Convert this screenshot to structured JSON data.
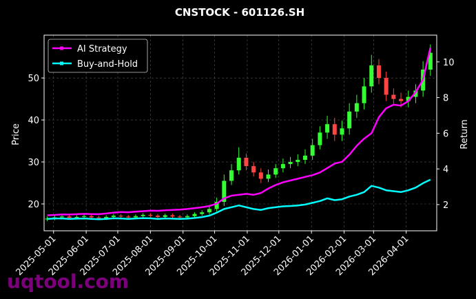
{
  "chart_data": {
    "type": "candlestick",
    "title": "CNSTOCK - 601126.SH",
    "ylabel": "Price",
    "y2label": "Return",
    "watermark": "uqtool.com",
    "x": [
      "2025-04-25",
      "2025-05-02",
      "2025-05-09",
      "2025-05-16",
      "2025-05-23",
      "2025-05-30",
      "2025-06-06",
      "2025-06-13",
      "2025-06-20",
      "2025-06-27",
      "2025-07-04",
      "2025-07-11",
      "2025-07-18",
      "2025-07-25",
      "2025-08-01",
      "2025-08-08",
      "2025-08-15",
      "2025-08-22",
      "2025-08-29",
      "2025-09-05",
      "2025-09-12",
      "2025-09-19",
      "2025-09-26",
      "2025-10-03",
      "2025-10-10",
      "2025-10-17",
      "2025-10-24",
      "2025-10-31",
      "2025-11-07",
      "2025-11-14",
      "2025-11-21",
      "2025-11-28",
      "2025-12-05",
      "2025-12-12",
      "2025-12-19",
      "2025-12-26",
      "2026-01-02",
      "2026-01-09",
      "2026-01-16",
      "2026-01-23",
      "2026-01-30",
      "2026-02-06",
      "2026-02-13",
      "2026-02-20",
      "2026-02-27",
      "2026-03-06",
      "2026-03-13",
      "2026-03-20",
      "2026-03-27",
      "2026-04-03",
      "2026-04-10",
      "2026-04-17",
      "2026-04-24"
    ],
    "open": [
      16.3,
      16.5,
      16.8,
      17.0,
      16.7,
      16.9,
      17.1,
      16.8,
      16.6,
      16.9,
      17.2,
      17.0,
      16.8,
      17.1,
      17.4,
      17.2,
      16.9,
      17.3,
      17.0,
      16.8,
      17.1,
      17.6,
      18.0,
      18.8,
      20.5,
      25.5,
      28.0,
      31.0,
      29.0,
      27.5,
      26.0,
      27.0,
      28.5,
      29.5,
      30.0,
      30.5,
      31.5,
      34.0,
      37.0,
      39.0,
      36.5,
      38.0,
      42.0,
      44.0,
      48.0,
      53.0,
      50.0,
      46.0,
      45.0,
      44.5,
      45.5,
      47.0,
      52.0
    ],
    "high": [
      17.0,
      17.3,
      17.5,
      17.4,
      17.3,
      17.5,
      17.5,
      17.2,
      17.3,
      17.6,
      17.6,
      17.4,
      17.5,
      17.8,
      17.8,
      17.6,
      17.7,
      17.7,
      17.4,
      17.5,
      18.0,
      18.5,
      19.4,
      21.5,
      27.0,
      29.5,
      33.5,
      32.0,
      30.0,
      28.5,
      28.2,
      29.5,
      30.8,
      31.2,
      31.8,
      33.0,
      35.5,
      38.5,
      41.0,
      40.5,
      39.8,
      44.0,
      46.0,
      50.0,
      55.5,
      54.5,
      51.5,
      47.5,
      46.5,
      47.0,
      48.5,
      54.0,
      58.0
    ],
    "low": [
      15.9,
      16.1,
      16.4,
      16.3,
      16.3,
      16.5,
      16.4,
      16.2,
      16.2,
      16.5,
      16.6,
      16.4,
      16.4,
      16.7,
      16.8,
      16.5,
      16.5,
      16.6,
      16.4,
      16.4,
      16.7,
      17.2,
      17.5,
      18.2,
      19.5,
      24.5,
      27.0,
      28.0,
      26.5,
      25.0,
      25.2,
      26.2,
      27.5,
      28.5,
      29.0,
      29.5,
      30.5,
      33.0,
      35.5,
      35.0,
      35.0,
      36.5,
      40.5,
      42.5,
      46.5,
      48.5,
      44.5,
      43.5,
      43.0,
      43.0,
      44.0,
      45.5,
      50.5
    ],
    "close": [
      16.5,
      16.8,
      17.0,
      16.7,
      16.9,
      17.1,
      16.8,
      16.6,
      16.9,
      17.2,
      17.0,
      16.8,
      17.1,
      17.4,
      17.2,
      16.9,
      17.3,
      17.0,
      16.8,
      17.1,
      17.6,
      18.0,
      18.8,
      20.5,
      25.5,
      28.0,
      31.0,
      29.0,
      27.5,
      26.0,
      27.0,
      28.5,
      29.5,
      30.0,
      30.5,
      31.5,
      34.0,
      37.0,
      39.0,
      36.5,
      38.0,
      42.0,
      44.0,
      48.0,
      53.0,
      50.0,
      46.0,
      45.0,
      44.5,
      45.5,
      47.0,
      52.0,
      56.0
    ],
    "up_color": "#33ff33",
    "down_color": "#ff4444",
    "series": [
      {
        "name": "AI Strategy",
        "color": "#ff00ff",
        "axis": "y2",
        "values": [
          1.4,
          1.42,
          1.45,
          1.44,
          1.46,
          1.48,
          1.47,
          1.46,
          1.5,
          1.55,
          1.58,
          1.57,
          1.6,
          1.63,
          1.66,
          1.65,
          1.68,
          1.7,
          1.72,
          1.75,
          1.8,
          1.85,
          1.92,
          2.05,
          2.35,
          2.5,
          2.55,
          2.6,
          2.55,
          2.65,
          2.9,
          3.1,
          3.25,
          3.35,
          3.45,
          3.55,
          3.65,
          3.8,
          4.05,
          4.3,
          4.4,
          4.8,
          5.3,
          5.7,
          6.0,
          6.9,
          7.4,
          7.6,
          7.55,
          7.8,
          8.3,
          9.0,
          10.8
        ]
      },
      {
        "name": "Buy-and-Hold",
        "color": "#00ffff",
        "axis": "y2",
        "values": [
          1.2,
          1.22,
          1.22,
          1.2,
          1.21,
          1.22,
          1.2,
          1.18,
          1.2,
          1.23,
          1.22,
          1.2,
          1.22,
          1.24,
          1.23,
          1.2,
          1.22,
          1.21,
          1.2,
          1.21,
          1.25,
          1.3,
          1.38,
          1.55,
          1.75,
          1.85,
          1.95,
          1.85,
          1.75,
          1.7,
          1.8,
          1.85,
          1.9,
          1.92,
          1.95,
          2.0,
          2.1,
          2.2,
          2.35,
          2.25,
          2.3,
          2.45,
          2.55,
          2.7,
          3.05,
          2.95,
          2.8,
          2.75,
          2.7,
          2.8,
          2.95,
          3.2,
          3.4
        ]
      }
    ],
    "xlim": [
      "2025-04-22",
      "2026-04-30"
    ],
    "xticks": [
      "2025-05-01",
      "2025-06-01",
      "2025-07-01",
      "2025-08-01",
      "2025-09-01",
      "2025-10-01",
      "2025-11-01",
      "2025-12-01",
      "2026-01-01",
      "2026-02-01",
      "2026-03-01",
      "2026-04-01"
    ],
    "ylim": [
      13.6,
      60.2
    ],
    "yticks": [
      20,
      30,
      40,
      50
    ],
    "y2lim": [
      0.53,
      11.5
    ],
    "y2ticks": [
      2,
      4,
      6,
      8,
      10
    ],
    "grid": true,
    "legend": "upper left"
  }
}
